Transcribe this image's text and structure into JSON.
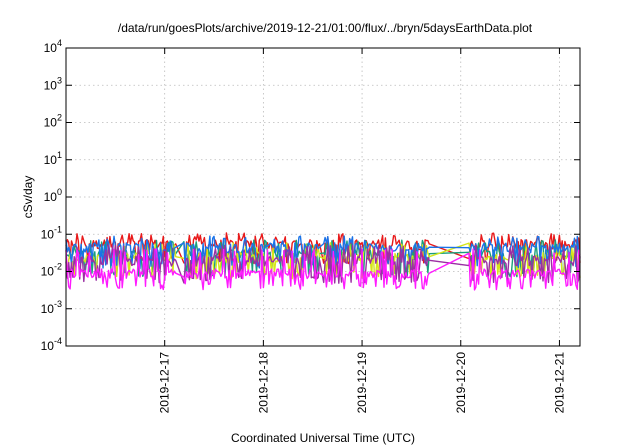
{
  "chart_data": {
    "type": "line",
    "title": "/data/run/goesPlots/archive/2019-12-21/01:00/flux/../bryn/5daysEarthData.plot",
    "xlabel": "Coordinated Universal Time (UTC)",
    "ylabel": "cSv/day",
    "y_scale": "log",
    "ylim": [
      0.0001,
      10000
    ],
    "xlim": [
      "2019-12-16T00:00",
      "2019-12-21T05:00"
    ],
    "grid": true,
    "x_ticks": [
      "2019-12-17",
      "2019-12-18",
      "2019-12-19",
      "2019-12-20",
      "2019-12-21"
    ],
    "y_ticks": [
      {
        "value": 0.0001,
        "mantissa": "10",
        "exp": "-4"
      },
      {
        "value": 0.001,
        "mantissa": "10",
        "exp": "-3"
      },
      {
        "value": 0.01,
        "mantissa": "10",
        "exp": "-2"
      },
      {
        "value": 0.1,
        "mantissa": "10",
        "exp": "-1"
      },
      {
        "value": 1,
        "mantissa": "10",
        "exp": "0"
      },
      {
        "value": 10,
        "mantissa": "10",
        "exp": "1"
      },
      {
        "value": 100,
        "mantissa": "10",
        "exp": "2"
      },
      {
        "value": 1000,
        "mantissa": "10",
        "exp": "3"
      },
      {
        "value": 10000,
        "mantissa": "10",
        "exp": "4"
      }
    ],
    "series": [
      {
        "color": "#e8191a",
        "base": 0.055,
        "low": 0.02,
        "high": 0.11
      },
      {
        "color": "#1a9f7a",
        "base": 0.03,
        "low": 0.009,
        "high": 0.07
      },
      {
        "color": "#d5e61a",
        "base": 0.025,
        "low": 0.008,
        "high": 0.06
      },
      {
        "color": "#1a73e8",
        "base": 0.045,
        "low": 0.015,
        "high": 0.09
      },
      {
        "color": "#9b2fa3",
        "base": 0.02,
        "low": 0.006,
        "high": 0.05
      },
      {
        "color": "#ff1aff",
        "base": 0.009,
        "low": 0.004,
        "high": 0.04
      }
    ],
    "gaps": [
      [
        "2019-12-17T02:30",
        "2019-12-17T04:30"
      ],
      [
        "2019-12-18T13:30",
        "2019-12-18T14:30"
      ],
      [
        "2019-12-19T16:00",
        "2019-12-20T02:00"
      ],
      [
        "2019-12-20T10:00",
        "2019-12-20T11:00"
      ]
    ]
  }
}
